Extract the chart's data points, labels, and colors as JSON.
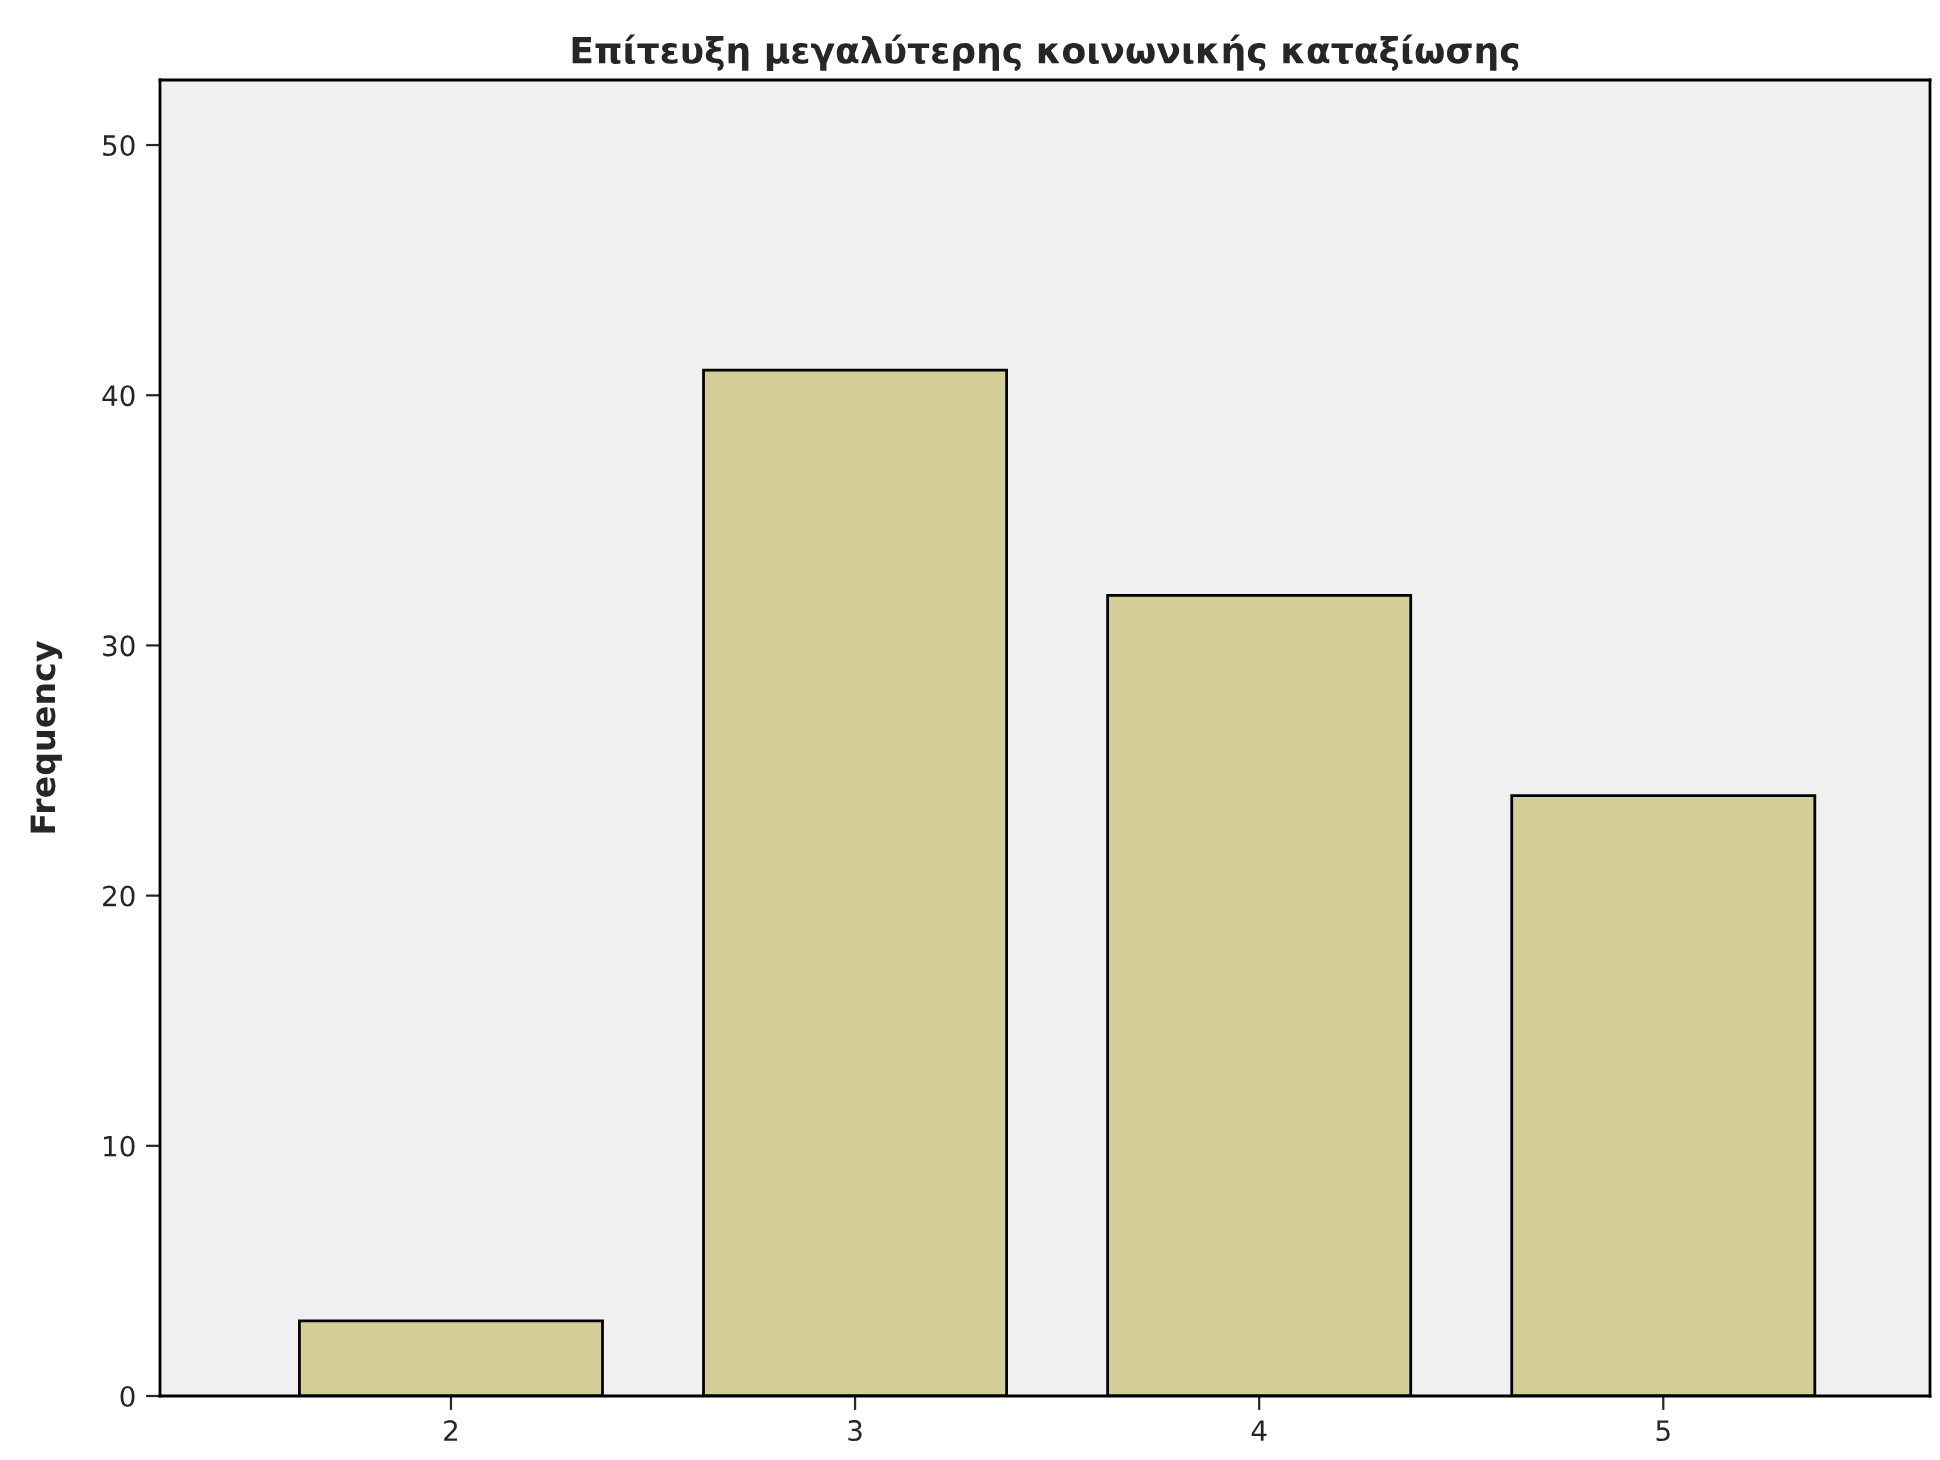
{
  "chart_data": {
    "type": "bar",
    "title": "Επίτευξη μεγαλύτερης κοινωνικής καταξίωσης",
    "ylabel": "Frequency",
    "categories": [
      "2",
      "3",
      "4",
      "5"
    ],
    "values": [
      3,
      41,
      32,
      24
    ],
    "color": "#d3ce97",
    "ylim": [
      0,
      52.6
    ],
    "yticks": [
      0,
      10,
      20,
      30,
      40,
      50
    ],
    "grid": false
  }
}
